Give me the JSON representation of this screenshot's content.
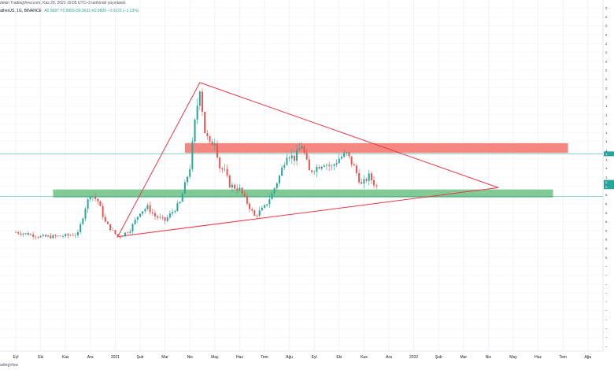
{
  "header": {
    "published": "dekin TradingView.com, Kas 29, 2021 19:05 UTC+3 tarihinde yayınlandı",
    "symbol": "atherUS, 1G, BINANCE",
    "ohlc": "A0.9687 Y0.9955 D0.9631 K0.9809 −0.0122 (−1.23%)"
  },
  "footer": {
    "brand": "adingView"
  },
  "colors": {
    "up": "#26a69a",
    "down": "#ef5350",
    "triangle": "#f23645",
    "resistance_zone": "#f4877f",
    "support_zone": "#81c995",
    "grid": "#f0f3fa"
  },
  "chart_data": {
    "type": "candlestick",
    "x_ticks": [
      "Eyl",
      "Eki",
      "Kas",
      "Ara",
      "2021",
      "Şub",
      "Mar",
      "Nis",
      "May",
      "Haz",
      "Tem",
      "Ağu",
      "Eyl",
      "Eki",
      "Kas",
      "Ara",
      "2022",
      "Şub",
      "Mar",
      "Nis",
      "May",
      "Haz",
      "Tem",
      "Ağu"
    ],
    "y_ticks": [
      "2.",
      "2.",
      "2.",
      "2.",
      "2.",
      "2.",
      "2.",
      "2.",
      "2.",
      "2.",
      "2.",
      "1.",
      "1.",
      "1.",
      "1.",
      "1.",
      "1.",
      "1.",
      "1.",
      "1.",
      "0.",
      "0.",
      "0.",
      "0.",
      "0.",
      "0.",
      "0.",
      "0.",
      "0.",
      "−",
      "−",
      "−",
      "−",
      "−",
      "−",
      "−",
      "−",
      "−",
      "−"
    ],
    "ylim": [
      -0.9,
      2.9
    ],
    "months_since_start": [
      0,
      1,
      2,
      3,
      4,
      5,
      6,
      7,
      8,
      9,
      10,
      11,
      12,
      13,
      14,
      15,
      16,
      17,
      18,
      19,
      20,
      21,
      22,
      23
    ],
    "price_path": [
      [
        0.0,
        0.47
      ],
      [
        0.5,
        0.45
      ],
      [
        1.0,
        0.42
      ],
      [
        1.5,
        0.42
      ],
      [
        2.0,
        0.43
      ],
      [
        2.5,
        0.45
      ],
      [
        2.8,
        0.75
      ],
      [
        3.0,
        0.9
      ],
      [
        3.3,
        0.82
      ],
      [
        3.6,
        0.58
      ],
      [
        3.9,
        0.48
      ],
      [
        4.1,
        0.42
      ],
      [
        4.3,
        0.44
      ],
      [
        4.6,
        0.5
      ],
      [
        5.0,
        0.7
      ],
      [
        5.3,
        0.75
      ],
      [
        5.6,
        0.65
      ],
      [
        6.0,
        0.6
      ],
      [
        6.3,
        0.7
      ],
      [
        6.6,
        0.8
      ],
      [
        7.0,
        1.2
      ],
      [
        7.2,
        1.7
      ],
      [
        7.4,
        2.1
      ],
      [
        7.6,
        1.6
      ],
      [
        7.8,
        1.45
      ],
      [
        8.0,
        1.5
      ],
      [
        8.2,
        1.2
      ],
      [
        8.4,
        1.15
      ],
      [
        8.6,
        1.0
      ],
      [
        9.0,
        0.95
      ],
      [
        9.3,
        0.8
      ],
      [
        9.6,
        0.65
      ],
      [
        10.0,
        0.75
      ],
      [
        10.3,
        0.9
      ],
      [
        10.6,
        1.1
      ],
      [
        10.9,
        1.35
      ],
      [
        11.2,
        1.3
      ],
      [
        11.5,
        1.45
      ],
      [
        11.8,
        1.15
      ],
      [
        12.1,
        1.2
      ],
      [
        12.4,
        1.25
      ],
      [
        12.7,
        1.2
      ],
      [
        13.0,
        1.3
      ],
      [
        13.3,
        1.35
      ],
      [
        13.6,
        1.2
      ],
      [
        13.9,
        1.0
      ],
      [
        14.2,
        1.1
      ],
      [
        14.5,
        0.98
      ]
    ],
    "annotations": {
      "triangle": {
        "apex": [
          7.4,
          2.15
        ],
        "right": [
          19.4,
          0.97
        ],
        "bottom_left": [
          4.1,
          0.42
        ]
      },
      "resistance_zone": {
        "x_range": [
          6.8,
          22.2
        ],
        "y_range": [
          1.36,
          1.47
        ]
      },
      "support_zone": {
        "x_range": [
          1.5,
          21.6
        ],
        "y_range": [
          0.86,
          0.95
        ]
      },
      "horizontal_lines": [
        1.35,
        0.87
      ]
    },
    "price_labels": [
      "1.",
      "0.",
      "0."
    ]
  }
}
